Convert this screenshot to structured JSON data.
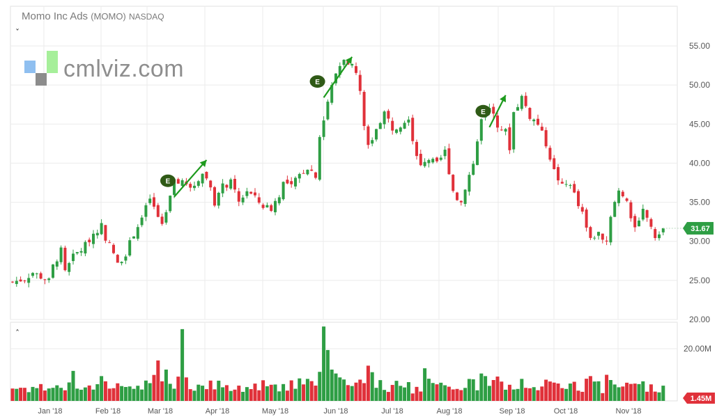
{
  "header": {
    "company": "Momo Inc Ads",
    "symbol": "(MOMO)",
    "exchange": "NASDAQ",
    "collapse_icon": "chevron-down-icon",
    "expand_icon": "chevron-up-icon"
  },
  "watermark": {
    "text": "cmlviz.com",
    "colors": [
      "#8fbff0",
      "#a6ef9a",
      "#8c8c8c"
    ]
  },
  "colors": {
    "up": "#2e9e44",
    "down": "#e0313a",
    "grid": "#ebebeb",
    "earnings": "#2f5a16",
    "arrow": "#1d9a1d",
    "last_price_bg": "#2e9e44",
    "last_volume_bg": "#e0313a"
  },
  "chart_data": {
    "type": "candlestick",
    "price_axis": {
      "ylim": [
        20,
        55
      ],
      "ticks": [
        "20.00",
        "25.00",
        "30.00",
        "35.00",
        "40.00",
        "45.00",
        "50.00",
        "55.00"
      ]
    },
    "volume_axis": {
      "tick": "20.00M",
      "tick_value": 20,
      "max": 28
    },
    "x_labels": [
      "Jan '18",
      "Feb '18",
      "Mar '18",
      "Apr '18",
      "May '18",
      "Jun '18",
      "Jul '18",
      "Aug '18",
      "Sep '18",
      "Oct '18",
      "Nov '18"
    ],
    "months_on_axis": [
      1,
      2,
      3,
      4,
      5,
      6,
      7,
      8,
      9,
      10,
      11
    ],
    "last_price": "31.67",
    "last_volume": "1.45M",
    "price_path": [
      [
        0,
        24.8
      ],
      [
        3,
        25.2
      ],
      [
        5,
        26.0
      ],
      [
        8,
        25.2
      ],
      [
        9,
        24.9
      ],
      [
        10,
        26.8
      ],
      [
        12,
        28.8
      ],
      [
        13,
        26.0
      ],
      [
        15,
        28.0
      ],
      [
        18,
        29.5
      ],
      [
        20,
        31.0
      ],
      [
        22,
        32.0
      ],
      [
        23,
        30.5
      ],
      [
        25,
        28.5
      ],
      [
        26,
        27.0
      ],
      [
        28,
        28.5
      ],
      [
        30,
        31.0
      ],
      [
        32,
        33.0
      ],
      [
        34,
        35.5
      ],
      [
        36,
        33.0
      ],
      [
        37,
        31.8
      ],
      [
        38,
        33.5
      ],
      [
        39,
        35.5
      ],
      [
        40,
        37.5
      ],
      [
        42,
        37.8
      ],
      [
        44,
        36.5
      ],
      [
        46,
        38.0
      ],
      [
        47,
        38.8
      ],
      [
        48,
        38.0
      ],
      [
        49,
        37.0
      ],
      [
        50,
        35.0
      ],
      [
        52,
        37.0
      ],
      [
        54,
        37.5
      ],
      [
        56,
        35.0
      ],
      [
        58,
        36.5
      ],
      [
        60,
        35.5
      ],
      [
        62,
        34.5
      ],
      [
        64,
        34.2
      ],
      [
        66,
        36.0
      ],
      [
        67,
        37.5
      ],
      [
        69,
        37.0
      ],
      [
        71,
        38.5
      ],
      [
        73,
        39.5
      ],
      [
        75,
        38.5
      ],
      [
        76,
        43.5
      ],
      [
        77,
        45.5
      ],
      [
        78,
        48.0
      ],
      [
        80,
        51.5
      ],
      [
        82,
        53.5
      ],
      [
        84,
        52.5
      ],
      [
        85,
        51.5
      ],
      [
        86,
        49.0
      ],
      [
        87,
        45.0
      ],
      [
        88,
        42.0
      ],
      [
        90,
        44.5
      ],
      [
        92,
        46.5
      ],
      [
        94,
        44.5
      ],
      [
        96,
        45.0
      ],
      [
        98,
        46.0
      ],
      [
        99,
        43.0
      ],
      [
        101,
        39.5
      ],
      [
        103,
        40.5
      ],
      [
        105,
        39.8
      ],
      [
        107,
        41.5
      ],
      [
        108,
        39.0
      ],
      [
        109,
        36.5
      ],
      [
        110,
        35.5
      ],
      [
        111,
        35.0
      ],
      [
        112,
        37.0
      ],
      [
        114,
        40.0
      ],
      [
        116,
        45.5
      ],
      [
        118,
        47.0
      ],
      [
        120,
        45.0
      ],
      [
        122,
        44.0
      ],
      [
        123,
        42.0
      ],
      [
        124,
        46.5
      ],
      [
        126,
        48.5
      ],
      [
        128,
        46.0
      ],
      [
        130,
        45.0
      ],
      [
        132,
        42.5
      ],
      [
        134,
        39.0
      ],
      [
        136,
        37.0
      ],
      [
        138,
        37.5
      ],
      [
        140,
        34.5
      ],
      [
        141,
        33.5
      ],
      [
        142,
        31.5
      ],
      [
        143,
        30.5
      ],
      [
        145,
        31.0
      ],
      [
        147,
        30.0
      ],
      [
        148,
        33.5
      ],
      [
        150,
        36.5
      ],
      [
        152,
        35.5
      ],
      [
        153,
        33.0
      ],
      [
        154,
        32.0
      ],
      [
        156,
        34.0
      ],
      [
        158,
        32.0
      ],
      [
        159,
        30.0
      ],
      [
        160,
        31.2
      ],
      [
        161,
        31.67
      ]
    ],
    "volume_base": [
      [
        0,
        5.0
      ],
      [
        20,
        5.5
      ],
      [
        36,
        7.0
      ],
      [
        60,
        5.0
      ],
      [
        75,
        9.0
      ],
      [
        84,
        6.0
      ],
      [
        100,
        5.0
      ],
      [
        120,
        6.5
      ],
      [
        140,
        5.5
      ],
      [
        161,
        4.5
      ]
    ],
    "volume_spikes": [
      [
        15,
        11.5
      ],
      [
        22,
        9.5
      ],
      [
        36,
        15.5
      ],
      [
        37,
        7.5
      ],
      [
        38,
        12.0
      ],
      [
        42,
        27.5
      ],
      [
        43,
        9.0
      ],
      [
        77,
        28.5
      ],
      [
        78,
        19.5
      ],
      [
        79,
        12.0
      ],
      [
        80,
        10.5
      ],
      [
        81,
        9.0
      ],
      [
        88,
        13.5
      ],
      [
        89,
        11.0
      ],
      [
        102,
        12.5
      ],
      [
        103,
        8.5
      ],
      [
        116,
        10.5
      ],
      [
        117,
        9.5
      ],
      [
        119,
        8.0
      ],
      [
        142,
        8.5
      ],
      [
        143,
        9.5
      ],
      [
        147,
        10.0
      ],
      [
        148,
        8.0
      ],
      [
        153,
        6.5
      ],
      [
        156,
        7.5
      ]
    ],
    "earnings_markers": [
      {
        "label": "E",
        "from_day": 40,
        "from_price": 35.7,
        "to_day": 48,
        "to_price": 40.4
      },
      {
        "label": "E",
        "from_day": 77,
        "from_price": 48.4,
        "to_day": 84,
        "to_price": 53.6
      },
      {
        "label": "E",
        "from_day": 118,
        "from_price": 44.6,
        "to_day": 122,
        "to_price": 48.7
      }
    ]
  }
}
